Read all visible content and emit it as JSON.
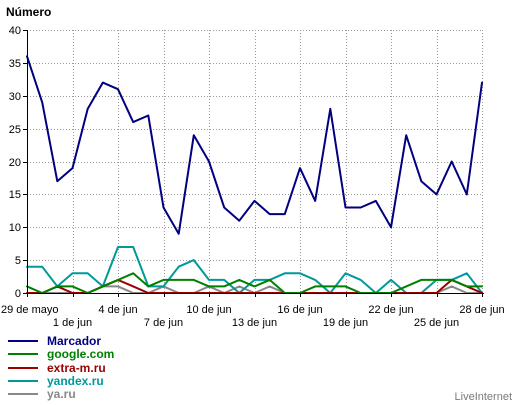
{
  "branding": {
    "watermark": "LiveInternet"
  },
  "chart_data": {
    "type": "line",
    "ylabel": "Número",
    "x": [
      "29 de mayo",
      "30 de mayo",
      "31 de mayo",
      "1 de jun",
      "2 de jun",
      "3 de jun",
      "4 de jun",
      "5 de jun",
      "6 de jun",
      "7 de jun",
      "8 de jun",
      "9 de jun",
      "10 de jun",
      "11 de jun",
      "12 de jun",
      "13 de jun",
      "14 de jun",
      "15 de jun",
      "16 de jun",
      "17 de jun",
      "18 de jun",
      "19 de jun",
      "20 de jun",
      "21 de jun",
      "22 de jun",
      "23 de jun",
      "24 de jun",
      "25 de jun",
      "26 de jun",
      "27 de jun",
      "28 de jun"
    ],
    "xticks": [
      "29 de mayo",
      "1 de jun",
      "4 de jun",
      "7 de jun",
      "10 de jun",
      "13 de jun",
      "16 de jun",
      "19 de jun",
      "22 de jun",
      "25 de jun",
      "28 de jun"
    ],
    "ylim": [
      0,
      40
    ],
    "yticks": [
      0,
      5,
      10,
      15,
      20,
      25,
      30,
      35,
      40
    ],
    "grid": true,
    "legend_position": "bottom-left",
    "series": [
      {
        "name": "Marcador",
        "color": "#000080",
        "values": [
          36,
          29,
          17,
          19,
          28,
          32,
          31,
          26,
          27,
          13,
          9,
          24,
          20,
          13,
          11,
          14,
          12,
          12,
          19,
          14,
          28,
          13,
          13,
          14,
          10,
          24,
          17,
          15,
          20,
          15,
          32
        ]
      },
      {
        "name": "google.com",
        "color": "#008000",
        "values": [
          1,
          0,
          1,
          1,
          0,
          1,
          2,
          3,
          1,
          2,
          2,
          2,
          1,
          1,
          2,
          1,
          2,
          0,
          0,
          1,
          1,
          1,
          0,
          0,
          0,
          1,
          2,
          2,
          2,
          1,
          1
        ]
      },
      {
        "name": "extra-m.ru",
        "color": "#990000",
        "values": [
          0,
          0,
          1,
          0,
          0,
          1,
          2,
          1,
          0,
          0,
          0,
          0,
          0,
          0,
          0,
          0,
          0,
          0,
          0,
          0,
          0,
          0,
          0,
          0,
          0,
          0,
          0,
          0,
          2,
          1,
          0
        ]
      },
      {
        "name": "yandex.ru",
        "color": "#009999",
        "values": [
          4,
          4,
          1,
          3,
          3,
          1,
          7,
          7,
          1,
          1,
          4,
          5,
          2,
          2,
          0,
          2,
          2,
          3,
          3,
          2,
          0,
          3,
          2,
          0,
          2,
          0,
          0,
          2,
          2,
          3,
          0
        ]
      },
      {
        "name": "ya.ru",
        "color": "#888888",
        "values": [
          0,
          0,
          0,
          0,
          0,
          1,
          1,
          0,
          0,
          1,
          0,
          0,
          1,
          0,
          1,
          0,
          1,
          0,
          0,
          0,
          0,
          0,
          0,
          0,
          0,
          0,
          0,
          0,
          1,
          0,
          0
        ]
      }
    ]
  }
}
